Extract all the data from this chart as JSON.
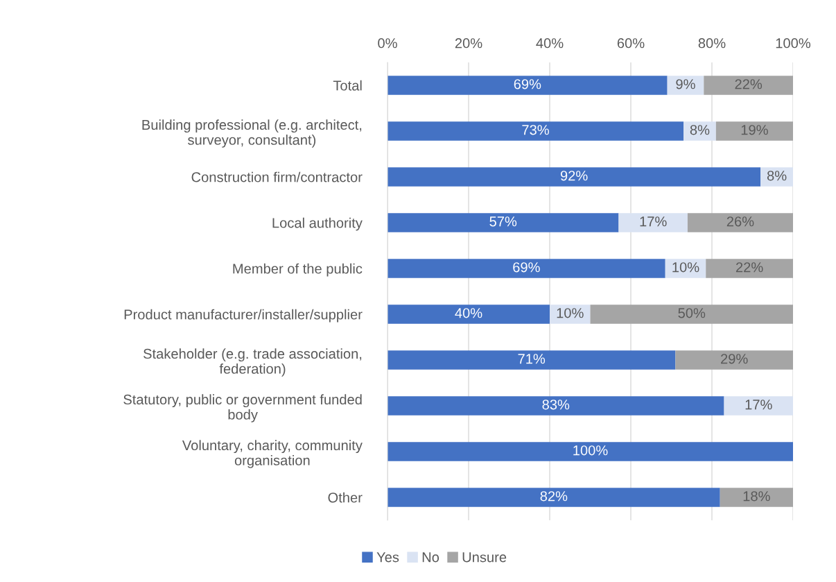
{
  "chart_data": {
    "type": "bar",
    "orientation": "horizontal",
    "stacked": true,
    "categories": [
      "Total",
      "Building professional (e.g. architect,\nsurveyor, consultant)",
      "Construction firm/contractor",
      "Local authority",
      "Member of the public",
      "Product manufacturer/installer/supplier",
      "Stakeholder (e.g. trade association,\nfederation)",
      "Statutory, public or government funded\nbody",
      "Voluntary, charity, community\norganisation",
      "Other"
    ],
    "series": [
      {
        "name": "Yes",
        "color": "#4472c4",
        "values": [
          69,
          73,
          92,
          57,
          68.5,
          40,
          71,
          83,
          100,
          82
        ],
        "value_labels": [
          "69%",
          "73%",
          "92%",
          "57%",
          "69%",
          "40%",
          "71%",
          "83%",
          "100%",
          "82%"
        ]
      },
      {
        "name": "No",
        "color": "#dae3f3",
        "values": [
          9,
          8,
          8,
          17,
          10,
          10,
          0,
          17,
          0,
          0
        ],
        "value_labels": [
          "9%",
          "8%",
          "8%",
          "17%",
          "10%",
          "10%",
          null,
          "17%",
          null,
          null
        ]
      },
      {
        "name": "Unsure",
        "color": "#a5a5a5",
        "values": [
          22,
          19,
          0,
          26,
          21.5,
          50,
          29,
          0,
          0,
          18
        ],
        "value_labels": [
          "22%",
          "19%",
          null,
          "26%",
          "22%",
          "50%",
          "29%",
          null,
          null,
          "18%"
        ]
      }
    ],
    "xlim": [
      0,
      100
    ],
    "xticks": [
      {
        "value": 0,
        "label": "0%"
      },
      {
        "value": 20,
        "label": "20%"
      },
      {
        "value": 40,
        "label": "40%"
      },
      {
        "value": 60,
        "label": "60%"
      },
      {
        "value": 80,
        "label": "80%"
      },
      {
        "value": 100,
        "label": "100%"
      }
    ],
    "grid": "x",
    "legend": "bottom"
  }
}
